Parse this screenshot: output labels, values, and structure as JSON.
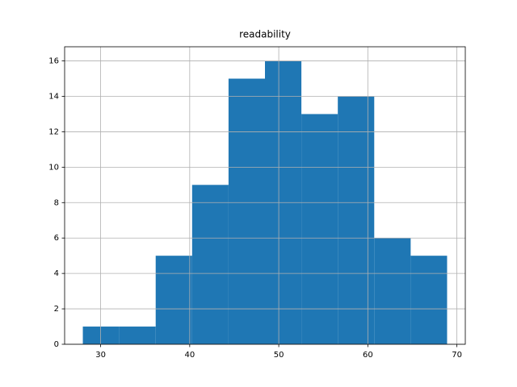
{
  "chart_data": {
    "type": "histogram",
    "title": "readability",
    "bins": [
      28,
      32.09,
      36.18,
      40.27,
      44.36,
      48.45,
      52.54,
      56.63,
      60.72,
      64.81,
      68.9
    ],
    "values": [
      1,
      1,
      5,
      9,
      15,
      16,
      13,
      14,
      6,
      5
    ],
    "color": "#1f77b4",
    "xlim": [
      25.955,
      70.945
    ],
    "xticks": [
      30,
      40,
      50,
      60,
      70
    ],
    "ylim": [
      0,
      16.8
    ],
    "yticks": [
      0,
      2,
      4,
      6,
      8,
      10,
      12,
      14,
      16
    ],
    "grid": true
  }
}
